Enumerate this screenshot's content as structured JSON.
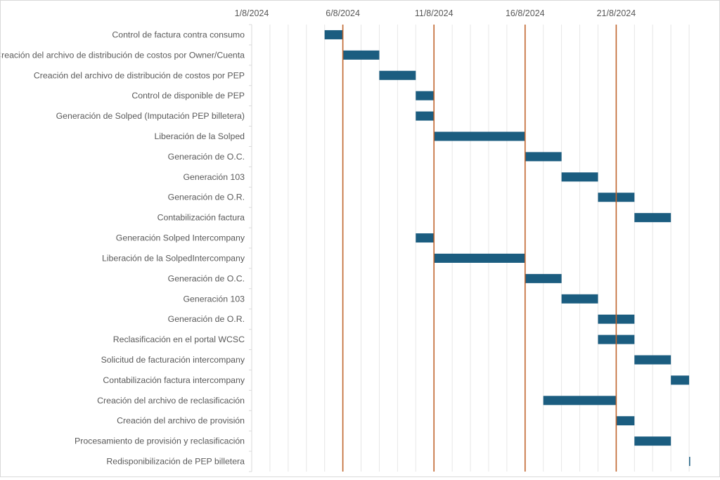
{
  "chart_data": {
    "type": "gantt",
    "title": "",
    "xlabel": "",
    "ylabel": "",
    "x_axis": {
      "min": "1/8/2024",
      "max": "25/8/2024",
      "tick_labels": [
        "1/8/2024",
        "6/8/2024",
        "11/8/2024",
        "16/8/2024",
        "21/8/2024"
      ],
      "tick_days": [
        1,
        6,
        11,
        16,
        21
      ],
      "minor_grid": "daily",
      "position": "top"
    },
    "marker_lines_days": [
      6,
      11,
      16,
      21
    ],
    "grid": true,
    "colors": {
      "bar": "#1b5d80",
      "marker_line": "#c0652e",
      "grid": "#e6e6e6"
    },
    "tasks": [
      {
        "label": "Control de factura contra consumo",
        "start": 5,
        "end": 6
      },
      {
        "label": "Creación del archivo de distribución de costos por Owner/Cuenta",
        "start": 6,
        "end": 8
      },
      {
        "label": "Creación del archivo de distribución de costos por PEP",
        "start": 8,
        "end": 10
      },
      {
        "label": "Control de disponible de PEP",
        "start": 10,
        "end": 11
      },
      {
        "label": "Generación de Solped (Imputación PEP billetera)",
        "start": 10,
        "end": 11
      },
      {
        "label": "Liberación de la Solped",
        "start": 11,
        "end": 16
      },
      {
        "label": "Generación de O.C.",
        "start": 16,
        "end": 18
      },
      {
        "label": "Generación 103",
        "start": 18,
        "end": 20
      },
      {
        "label": "Generación de O.R.",
        "start": 20,
        "end": 22
      },
      {
        "label": "Contabilización factura",
        "start": 22,
        "end": 24
      },
      {
        "label": "Generación Solped Intercompany",
        "start": 10,
        "end": 11
      },
      {
        "label": "Liberación de la SolpedIntercompany",
        "start": 11,
        "end": 16
      },
      {
        "label": "Generación de O.C.",
        "start": 16,
        "end": 18
      },
      {
        "label": "Generación 103",
        "start": 18,
        "end": 20
      },
      {
        "label": "Generación de O.R.",
        "start": 20,
        "end": 22
      },
      {
        "label": "Reclasificación en el portal WCSC",
        "start": 20,
        "end": 22
      },
      {
        "label": "Solicitud de facturación intercompany",
        "start": 22,
        "end": 24
      },
      {
        "label": "Contabilización factura intercompany",
        "start": 24,
        "end": 25
      },
      {
        "label": "Creación del archivo de reclasificación",
        "start": 17,
        "end": 21
      },
      {
        "label": "Creación del archivo de provisión",
        "start": 21,
        "end": 22
      },
      {
        "label": "Procesamiento de provisión y reclasificación",
        "start": 22,
        "end": 24
      },
      {
        "label": "Redisponibilización de PEP billetera",
        "start": 25,
        "end": 25
      }
    ]
  }
}
